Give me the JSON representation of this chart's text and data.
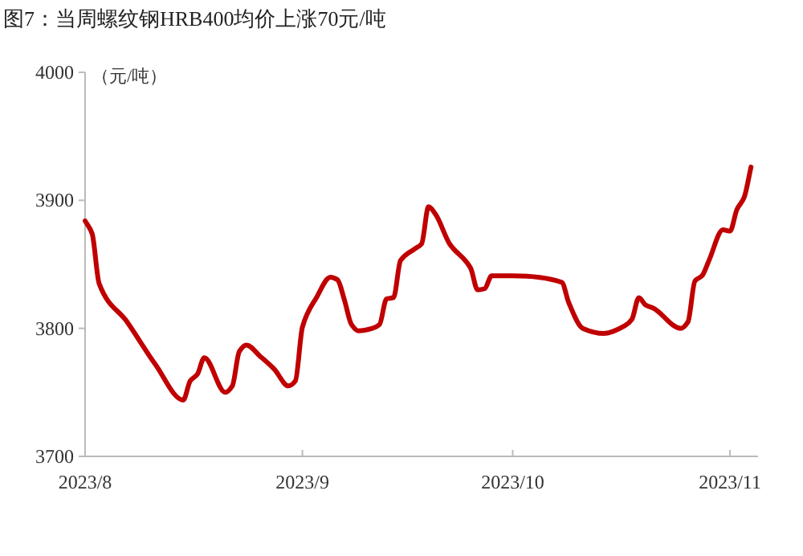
{
  "chart_data": {
    "type": "line",
    "title": "图7：当周螺纹钢HRB400均价上涨70元/吨",
    "ylabel": "（元/吨）",
    "x": [
      "2023-08-01",
      "2023-08-02",
      "2023-08-03",
      "2023-08-07",
      "2023-08-11",
      "2023-08-15",
      "2023-08-16",
      "2023-08-17",
      "2023-08-18",
      "2023-08-21",
      "2023-08-22",
      "2023-08-23",
      "2023-08-24",
      "2023-08-26",
      "2023-08-28",
      "2023-08-30",
      "2023-08-31",
      "2023-09-01",
      "2023-09-03",
      "2023-09-05",
      "2023-09-06",
      "2023-09-07",
      "2023-09-08",
      "2023-09-09",
      "2023-09-11",
      "2023-09-12",
      "2023-09-13",
      "2023-09-14",
      "2023-09-15",
      "2023-09-17",
      "2023-09-18",
      "2023-09-19",
      "2023-09-20",
      "2023-09-22",
      "2023-09-25",
      "2023-09-26",
      "2023-09-27",
      "2023-09-28",
      "2023-10-01",
      "2023-10-08",
      "2023-10-09",
      "2023-10-11",
      "2023-10-14",
      "2023-10-17",
      "2023-10-18",
      "2023-10-19",
      "2023-10-20",
      "2023-10-21",
      "2023-10-25",
      "2023-10-26",
      "2023-10-27",
      "2023-10-28",
      "2023-10-29",
      "2023-10-31",
      "2023-11-01",
      "2023-11-02",
      "2023-11-03",
      "2023-11-04"
    ],
    "series": [
      {
        "color": "#c00000",
        "values": [
          3884,
          3874,
          3835,
          3805,
          3772,
          3744,
          3759,
          3764,
          3777,
          3750,
          3755,
          3782,
          3787,
          3778,
          3768,
          3755,
          3759,
          3801,
          3824,
          3840,
          3838,
          3822,
          3803,
          3798,
          3800,
          3803,
          3823,
          3824,
          3853,
          3862,
          3866,
          3895,
          3889,
          3866,
          3847,
          3830,
          3831,
          3841,
          3841,
          3836,
          3820,
          3800,
          3796,
          3802,
          3807,
          3824,
          3818,
          3816,
          3800,
          3805,
          3837,
          3841,
          3853,
          3877,
          3876,
          3893,
          3902,
          3926
        ]
      }
    ],
    "xlim": [
      "2023-08-01",
      "2023-11-05"
    ],
    "xticks": [
      {
        "value": "2023-08-01",
        "label": "2023/8"
      },
      {
        "value": "2023-09-01",
        "label": "2023/9"
      },
      {
        "value": "2023-10-01",
        "label": "2023/10"
      },
      {
        "value": "2023-11-01",
        "label": "2023/11"
      }
    ],
    "ylim": [
      3700,
      4000
    ],
    "yticks": [
      3700,
      3800,
      3900,
      4000
    ]
  }
}
